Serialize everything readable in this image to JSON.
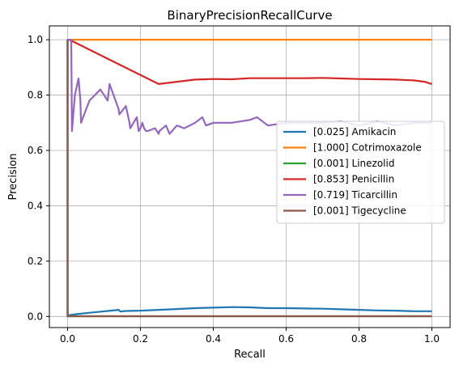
{
  "chart_data": {
    "type": "line",
    "title": "BinaryPrecisionRecallCurve",
    "xlabel": "Recall",
    "ylabel": "Precision",
    "xlim": [
      -0.05,
      1.05
    ],
    "ylim": [
      -0.04,
      1.05
    ],
    "xticks": [
      0.0,
      0.2,
      0.4,
      0.6,
      0.8,
      1.0
    ],
    "xtick_labels": [
      "0.0",
      "0.2",
      "0.4",
      "0.6",
      "0.8",
      "1.0"
    ],
    "yticks": [
      0.0,
      0.2,
      0.4,
      0.6,
      0.8,
      1.0
    ],
    "ytick_labels": [
      "0.0",
      "0.2",
      "0.4",
      "0.6",
      "0.8",
      "1.0"
    ],
    "grid": true,
    "legend_position": "center-right",
    "series": [
      {
        "name": "[0.025] Amikacin",
        "color": "#1f77b4",
        "x": [
          0.0,
          0.0,
          0.001,
          0.02,
          0.05,
          0.08,
          0.11,
          0.14,
          0.145,
          0.16,
          0.2,
          0.25,
          0.3,
          0.35,
          0.4,
          0.45,
          0.5,
          0.55,
          0.6,
          0.65,
          0.7,
          0.75,
          0.8,
          0.85,
          0.9,
          0.95,
          1.0
        ],
        "y": [
          1.0,
          0.0,
          0.004,
          0.008,
          0.012,
          0.016,
          0.02,
          0.024,
          0.018,
          0.02,
          0.021,
          0.024,
          0.027,
          0.03,
          0.032,
          0.034,
          0.033,
          0.03,
          0.03,
          0.029,
          0.028,
          0.026,
          0.024,
          0.022,
          0.021,
          0.019,
          0.019
        ]
      },
      {
        "name": "[1.000] Cotrimoxazole",
        "color": "#ff7f0e",
        "x": [
          0.0,
          1.0
        ],
        "y": [
          1.0,
          1.0
        ]
      },
      {
        "name": "[0.001] Linezolid",
        "color": "#2ca02c",
        "x": [
          0.0,
          0.0,
          1.0
        ],
        "y": [
          1.0,
          0.001,
          0.001
        ]
      },
      {
        "name": "[0.853] Penicillin",
        "color": "#d62728",
        "x": [
          0.0,
          0.005,
          0.25,
          0.3,
          0.35,
          0.4,
          0.45,
          0.5,
          0.55,
          0.6,
          0.65,
          0.7,
          0.75,
          0.8,
          0.85,
          0.9,
          0.95,
          0.98,
          1.0
        ],
        "y": [
          1.0,
          1.0,
          0.84,
          0.848,
          0.856,
          0.858,
          0.857,
          0.861,
          0.861,
          0.861,
          0.861,
          0.862,
          0.86,
          0.858,
          0.857,
          0.856,
          0.853,
          0.848,
          0.84
        ]
      },
      {
        "name": "[0.719] Ticarcillin",
        "color": "#9467bd",
        "x": [
          0.0,
          0.0,
          0.01,
          0.012,
          0.02,
          0.03,
          0.035,
          0.037,
          0.06,
          0.09,
          0.11,
          0.115,
          0.14,
          0.142,
          0.16,
          0.17,
          0.172,
          0.19,
          0.195,
          0.2,
          0.205,
          0.21,
          0.215,
          0.22,
          0.24,
          0.25,
          0.252,
          0.27,
          0.28,
          0.3,
          0.32,
          0.35,
          0.37,
          0.38,
          0.4,
          0.45,
          0.5,
          0.52,
          0.55,
          0.6,
          0.65,
          0.7,
          0.75,
          0.8,
          0.85,
          0.9,
          0.95,
          1.0
        ],
        "y": [
          0.0,
          1.0,
          1.0,
          0.67,
          0.8,
          0.86,
          0.78,
          0.7,
          0.78,
          0.82,
          0.78,
          0.84,
          0.75,
          0.73,
          0.76,
          0.7,
          0.68,
          0.72,
          0.67,
          0.68,
          0.7,
          0.68,
          0.67,
          0.67,
          0.68,
          0.66,
          0.67,
          0.69,
          0.66,
          0.69,
          0.68,
          0.7,
          0.72,
          0.69,
          0.7,
          0.7,
          0.71,
          0.72,
          0.69,
          0.7,
          0.7,
          0.7,
          0.705,
          0.69,
          0.705,
          0.69,
          0.7,
          0.7
        ]
      },
      {
        "name": "[0.001] Tigecycline",
        "color": "#8c564b",
        "x": [
          0.0,
          0.0,
          1.0
        ],
        "y": [
          1.0,
          0.001,
          0.001
        ]
      }
    ]
  }
}
